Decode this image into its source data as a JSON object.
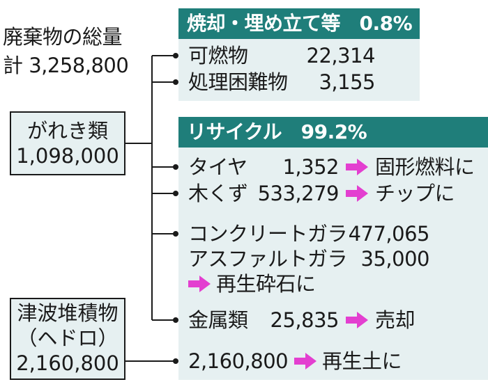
{
  "total": {
    "label": "廃棄物の総量",
    "value": "計 3,258,800"
  },
  "debris": {
    "label": "がれき類",
    "value": "1,098,000"
  },
  "sludge": {
    "line1": "津波堆積物",
    "line2": "（ヘドロ）",
    "value": "2,160,800"
  },
  "incineration": {
    "header": "焼却・埋め立て等　0.8%",
    "items": [
      {
        "name": "可燃物",
        "value": "22,314"
      },
      {
        "name": "処理困難物",
        "value": "3,155"
      }
    ]
  },
  "recycle": {
    "header": "リサイクル　99.2%",
    "tires": {
      "name": "タイヤ",
      "value": "1,352",
      "dest": "固形燃料に"
    },
    "wood": {
      "name": "木くず",
      "value": "533,279",
      "dest": "チップに"
    },
    "concrete": {
      "name": "コンクリートガラ",
      "value": "477,065"
    },
    "asphalt": {
      "name": "アスファルトガラ",
      "value": "35,000"
    },
    "crushed_dest": "再生砕石に",
    "metal": {
      "name": "金属類",
      "value": "25,835",
      "dest": "売却"
    },
    "sludge_row": {
      "value": "2,160,800",
      "dest": "再生土に"
    }
  },
  "colors": {
    "banner": "#1f7e7a",
    "panel": "#e6f0f1",
    "arrow": "#e33fd0",
    "line": "#1a1a1a"
  }
}
